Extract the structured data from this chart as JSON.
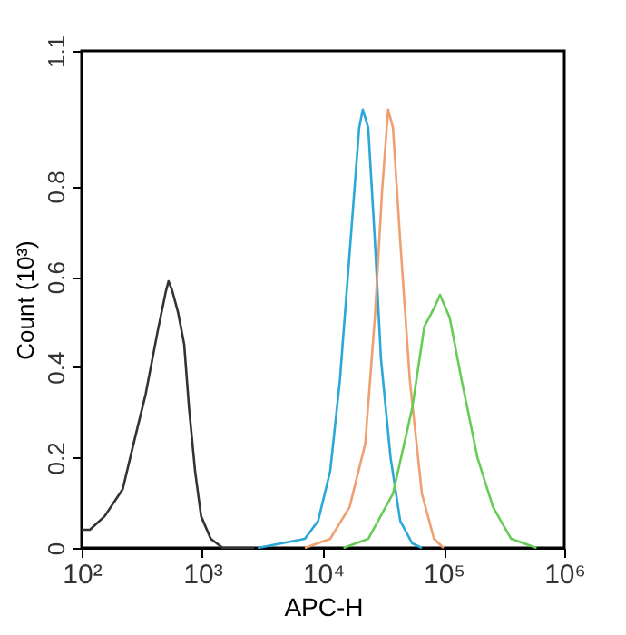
{
  "chart_data": {
    "type": "line",
    "xlabel": "APC-H",
    "ylabel": "Count (10³)",
    "log": "x",
    "xlim": [
      100,
      1000000
    ],
    "xticks": [
      {
        "value": 100,
        "label": "10²"
      },
      {
        "value": 1000,
        "label": "10³"
      },
      {
        "value": 10000,
        "label": "10⁴"
      },
      {
        "value": 100000,
        "label": "10⁵"
      },
      {
        "value": 1000000,
        "label": "10⁶"
      }
    ],
    "ylim": [
      0,
      1.1
    ],
    "yticks": [
      0,
      0.2,
      0.4,
      0.6,
      0.8,
      1.1
    ],
    "grid": false,
    "marker": "none",
    "line_style": "solid",
    "series": [
      {
        "color": "#333333",
        "x": [
          100,
          117,
          155,
          219,
          269,
          339,
          427,
          501,
          525,
          562,
          631,
          708,
          776,
          871,
          977,
          1175,
          1479,
          2692
        ],
        "values": [
          0.04,
          0.04,
          0.07,
          0.13,
          0.23,
          0.34,
          0.48,
          0.57,
          0.59,
          0.57,
          0.52,
          0.45,
          0.31,
          0.17,
          0.07,
          0.02,
          0,
          0
        ]
      },
      {
        "color": "#2aa8d8",
        "x": [
          2884,
          7079,
          9120,
          11480,
          13800,
          16600,
          19950,
          21380,
          23710,
          26920,
          30200,
          36310,
          43650,
          54950,
          66070
        ],
        "values": [
          0,
          0.02,
          0.06,
          0.17,
          0.37,
          0.65,
          0.93,
          0.97,
          0.93,
          0.68,
          0.42,
          0.2,
          0.06,
          0.01,
          0
        ]
      },
      {
        "color": "#f0a070",
        "x": [
          7079,
          11480,
          16600,
          22390,
          26920,
          30900,
          34670,
          38020,
          43650,
          52480,
          66070,
          83180,
          100000
        ],
        "values": [
          0,
          0.02,
          0.09,
          0.23,
          0.51,
          0.79,
          0.97,
          0.93,
          0.68,
          0.37,
          0.12,
          0.02,
          0
        ]
      },
      {
        "color": "#66cc55",
        "x": [
          14790,
          23710,
          38020,
          54950,
          69180,
          83180,
          93330,
          112200,
          141300,
          190500,
          257000,
          363100,
          588800
        ],
        "values": [
          0,
          0.02,
          0.12,
          0.31,
          0.49,
          0.53,
          0.56,
          0.51,
          0.37,
          0.2,
          0.09,
          0.02,
          0
        ]
      }
    ]
  }
}
